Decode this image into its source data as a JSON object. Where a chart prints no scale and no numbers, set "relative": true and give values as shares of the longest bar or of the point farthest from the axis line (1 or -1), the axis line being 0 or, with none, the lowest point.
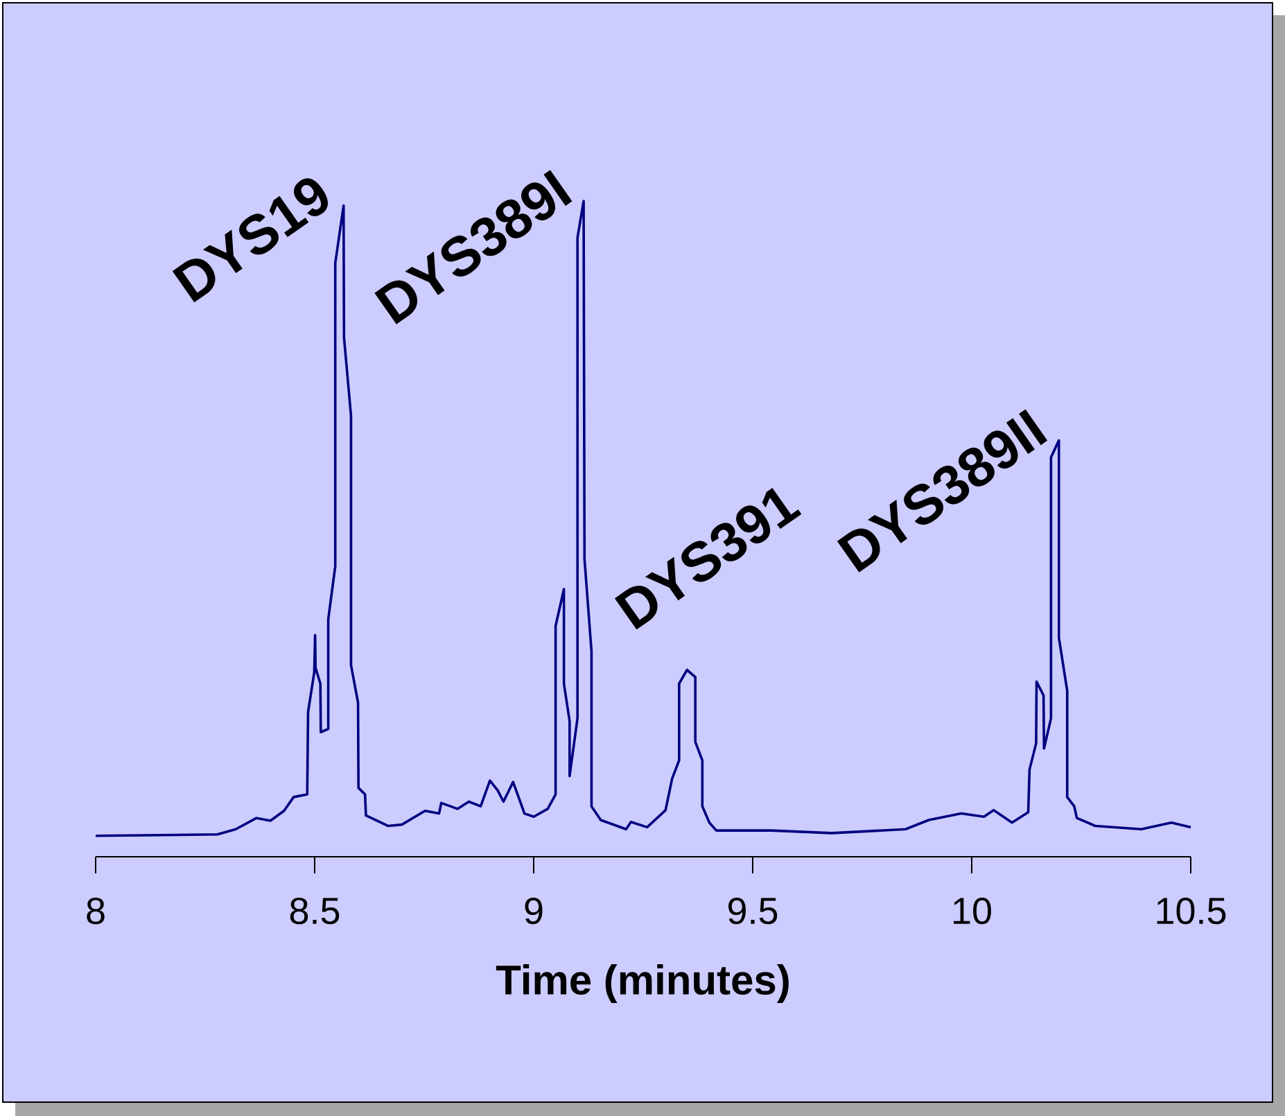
{
  "chart_data": {
    "type": "line",
    "xlabel": "Time (minutes)",
    "relative": true,
    "xlim": [
      8,
      10.5
    ],
    "xticks": [
      8,
      8.5,
      9,
      9.5,
      10,
      10.5
    ],
    "x": [
      8.0,
      8.278,
      8.32,
      8.367,
      8.399,
      8.43,
      8.452,
      8.483,
      8.485,
      8.499,
      8.501,
      8.502,
      8.513,
      8.514,
      8.531,
      8.531,
      8.547,
      8.547,
      8.566,
      8.567,
      8.583,
      8.583,
      8.599,
      8.6,
      8.615,
      8.617,
      8.668,
      8.699,
      8.752,
      8.784,
      8.789,
      8.826,
      8.852,
      8.879,
      8.9,
      8.918,
      8.931,
      8.953,
      8.979,
      9.0,
      9.032,
      9.05,
      9.05,
      9.069,
      9.069,
      9.082,
      9.082,
      9.1,
      9.1,
      9.114,
      9.116,
      9.132,
      9.132,
      9.153,
      9.211,
      9.222,
      9.259,
      9.301,
      9.316,
      9.332,
      9.332,
      9.35,
      9.369,
      9.369,
      9.385,
      9.385,
      9.401,
      9.417,
      9.543,
      9.68,
      9.849,
      9.902,
      9.976,
      10.028,
      10.05,
      10.092,
      10.129,
      10.132,
      10.147,
      10.148,
      10.164,
      10.165,
      10.181,
      10.181,
      10.199,
      10.199,
      10.218,
      10.218,
      10.234,
      10.24,
      10.282,
      10.387,
      10.456,
      10.5
    ],
    "series": [
      {
        "color": "#000080",
        "values": [
          0.032,
          0.034,
          0.042,
          0.059,
          0.055,
          0.07,
          0.091,
          0.095,
          0.221,
          0.281,
          0.338,
          0.288,
          0.264,
          0.19,
          0.195,
          0.362,
          0.443,
          0.905,
          0.993,
          0.792,
          0.672,
          0.292,
          0.235,
          0.105,
          0.095,
          0.063,
          0.047,
          0.049,
          0.07,
          0.066,
          0.082,
          0.073,
          0.084,
          0.077,
          0.116,
          0.101,
          0.084,
          0.114,
          0.066,
          0.061,
          0.073,
          0.095,
          0.352,
          0.408,
          0.264,
          0.207,
          0.123,
          0.211,
          0.944,
          1.0,
          0.454,
          0.313,
          0.077,
          0.056,
          0.042,
          0.053,
          0.045,
          0.071,
          0.119,
          0.147,
          0.264,
          0.285,
          0.274,
          0.175,
          0.147,
          0.077,
          0.052,
          0.04,
          0.04,
          0.036,
          0.042,
          0.056,
          0.066,
          0.061,
          0.071,
          0.052,
          0.068,
          0.133,
          0.173,
          0.267,
          0.246,
          0.165,
          0.211,
          0.609,
          0.635,
          0.334,
          0.253,
          0.091,
          0.077,
          0.059,
          0.047,
          0.042,
          0.052,
          0.045
        ]
      }
    ],
    "annotations": [
      {
        "text": "DYS19",
        "x": 8.566,
        "y": 0.993
      },
      {
        "text": "DYS389I",
        "x": 9.114,
        "y": 1.0
      },
      {
        "text": "DYS391",
        "x": 9.35,
        "y": 0.285
      },
      {
        "text": "DYS389II",
        "x": 10.199,
        "y": 0.635
      }
    ]
  }
}
